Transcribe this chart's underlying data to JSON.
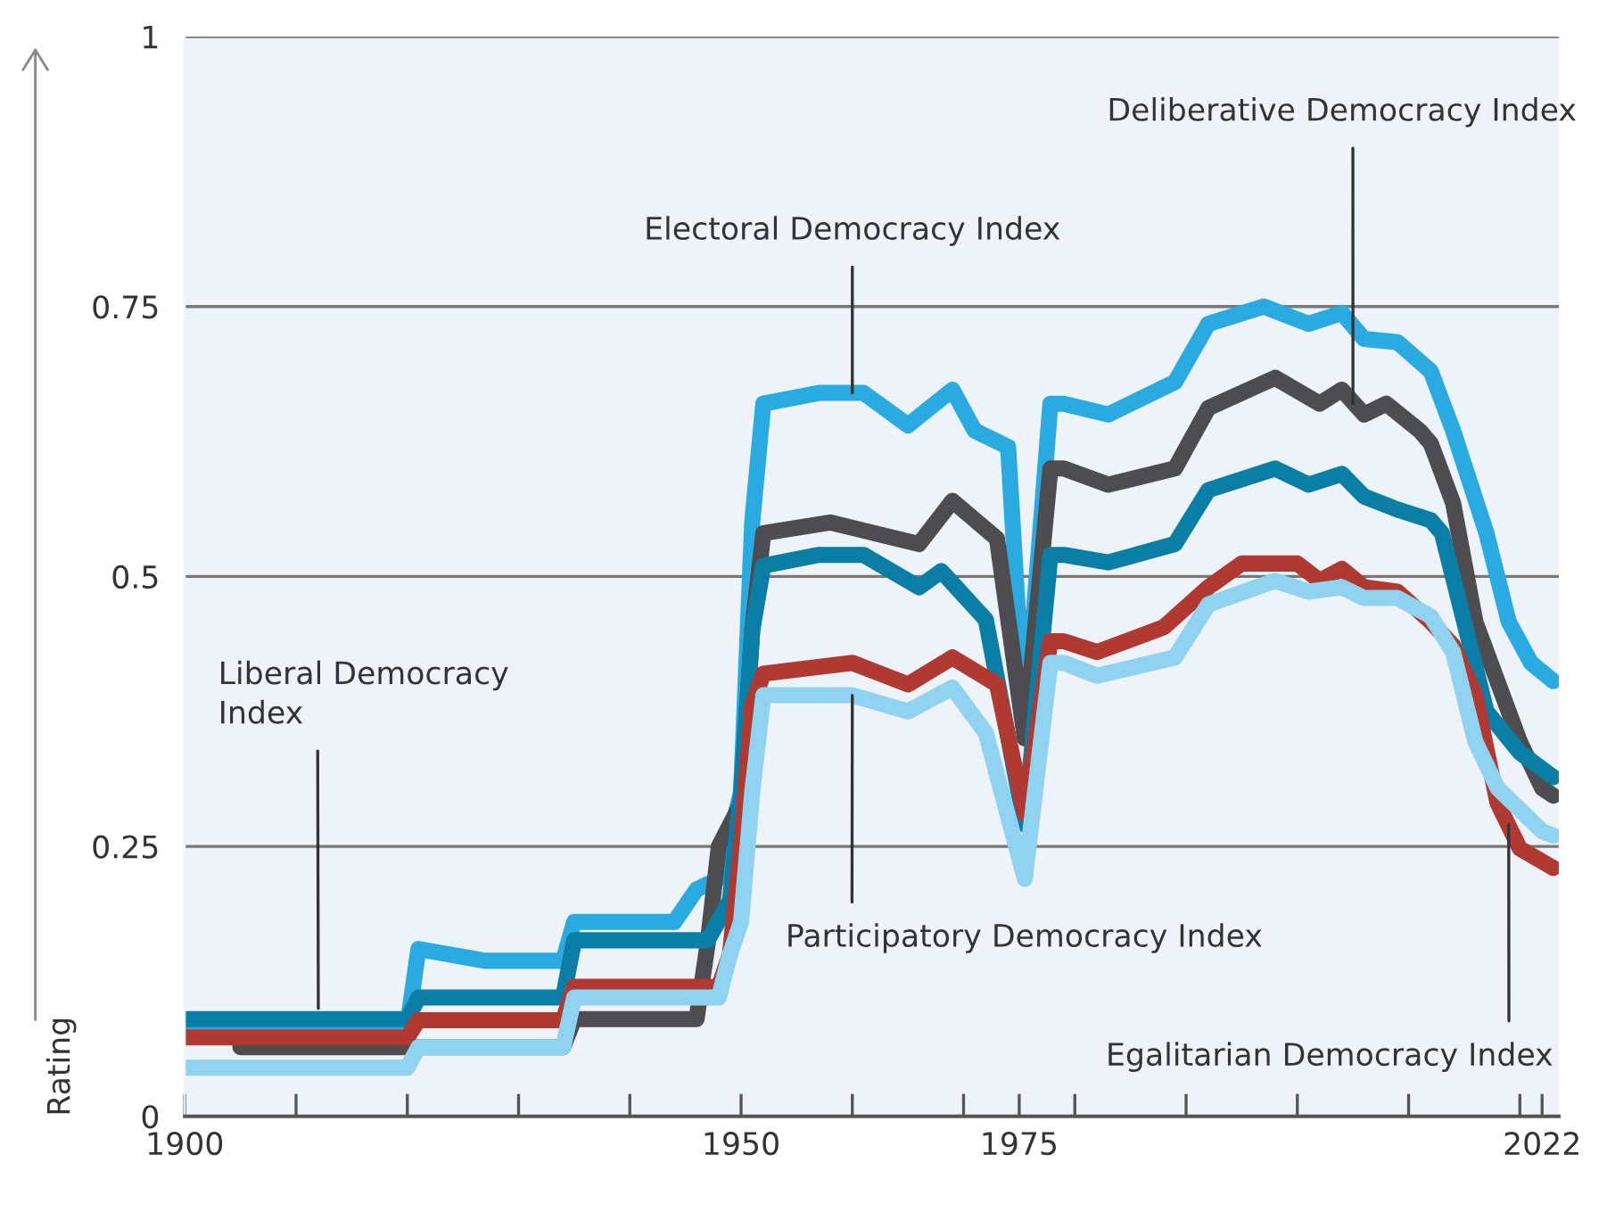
{
  "chart_data": {
    "type": "line",
    "ylabel": "Rating",
    "xlim": [
      1900,
      2023.5
    ],
    "ylim": [
      0,
      1
    ],
    "xticks": [
      1900,
      {
        "value": 1910,
        "label": null
      },
      {
        "value": 1920,
        "label": null
      },
      {
        "value": 1930,
        "label": null
      },
      {
        "value": 1940,
        "label": null
      },
      1950,
      {
        "value": 1960,
        "label": null
      },
      {
        "value": 1970,
        "label": null
      },
      1975,
      {
        "value": 1980,
        "label": null
      },
      {
        "value": 1990,
        "label": null
      },
      {
        "value": 2000,
        "label": null
      },
      {
        "value": 2010,
        "label": null
      },
      {
        "value": 2020,
        "label": null
      },
      2022
    ],
    "yticks": [
      0,
      0.25,
      0.5,
      0.75,
      1
    ],
    "grid": "y",
    "legend": false,
    "line_style": "solid",
    "marker": "none",
    "series": [
      {
        "color": "#29abe2",
        "x": [
          1900,
          1905,
          1906,
          1907,
          1920,
          1921,
          1927,
          1934,
          1935,
          1944,
          1946,
          1948,
          1950,
          1951,
          1952,
          1957,
          1961,
          1965,
          1969,
          1971,
          1974,
          1975.5,
          1977.8,
          1979,
          1983,
          1989,
          1992,
          1997,
          2001,
          2004,
          2006,
          2009,
          2012,
          2014,
          2017,
          2019,
          2021,
          2023
        ],
        "values": [
          0.083,
          0.083,
          0.075,
          0.083,
          0.083,
          0.155,
          0.144,
          0.144,
          0.18,
          0.18,
          0.21,
          0.22,
          0.3,
          0.55,
          0.66,
          0.67,
          0.67,
          0.64,
          0.673,
          0.635,
          0.62,
          0.36,
          0.66,
          0.66,
          0.65,
          0.68,
          0.734,
          0.75,
          0.734,
          0.744,
          0.72,
          0.717,
          0.69,
          0.635,
          0.54,
          0.458,
          0.42,
          0.403
        ]
      },
      {
        "color": "#4d4d4f",
        "x": [
          1905,
          1934,
          1935,
          1946,
          1947,
          1948,
          1950,
          1951,
          1952,
          1958,
          1966,
          1969,
          1973,
          1975.5,
          1977.8,
          1979,
          1983,
          1989,
          1992,
          1998,
          2002,
          2004,
          2006,
          2008,
          2011,
          2012,
          2014,
          2016,
          2020,
          2022,
          2023
        ],
        "values": [
          0.064,
          0.064,
          0.09,
          0.09,
          0.16,
          0.25,
          0.29,
          0.45,
          0.54,
          0.55,
          0.53,
          0.57,
          0.535,
          0.35,
          0.6,
          0.6,
          0.585,
          0.6,
          0.656,
          0.684,
          0.66,
          0.673,
          0.65,
          0.66,
          0.635,
          0.623,
          0.568,
          0.458,
          0.347,
          0.304,
          0.297
        ]
      },
      {
        "color": "#0b7ea5",
        "x": [
          1900,
          1920,
          1921,
          1934,
          1935,
          1947,
          1949,
          1950,
          1951,
          1952,
          1957,
          1961,
          1966,
          1968,
          1972,
          1975.5,
          1977.8,
          1979,
          1983,
          1989,
          1992,
          1998,
          2001,
          2004,
          2006,
          2009,
          2012,
          2013,
          2015,
          2017,
          2020,
          2023
        ],
        "values": [
          0.09,
          0.09,
          0.11,
          0.11,
          0.163,
          0.163,
          0.2,
          0.3,
          0.45,
          0.51,
          0.52,
          0.52,
          0.49,
          0.505,
          0.46,
          0.27,
          0.52,
          0.52,
          0.513,
          0.53,
          0.58,
          0.6,
          0.585,
          0.595,
          0.574,
          0.562,
          0.552,
          0.54,
          0.458,
          0.375,
          0.337,
          0.314
        ]
      },
      {
        "color": "#b03a32",
        "x": [
          1900,
          1920,
          1921,
          1934,
          1935,
          1948,
          1949,
          1950,
          1951,
          1952,
          1960,
          1965,
          1969,
          1973,
          1975.5,
          1977.8,
          1979,
          1982,
          1988,
          1992,
          1995,
          2000,
          2002,
          2004,
          2006,
          2009,
          2012,
          2014,
          2016,
          2018,
          2020,
          2023
        ],
        "values": [
          0.073,
          0.073,
          0.089,
          0.089,
          0.12,
          0.12,
          0.15,
          0.25,
          0.38,
          0.41,
          0.42,
          0.4,
          0.425,
          0.4,
          0.28,
          0.44,
          0.44,
          0.43,
          0.453,
          0.49,
          0.512,
          0.512,
          0.496,
          0.507,
          0.49,
          0.486,
          0.458,
          0.436,
          0.39,
          0.29,
          0.248,
          0.23
        ]
      },
      {
        "color": "#8fd3f0",
        "x": [
          1900,
          1920,
          1921,
          1934,
          1935,
          1948,
          1949,
          1950,
          1951,
          1952,
          1960,
          1965,
          1969,
          1972,
          1975.5,
          1977.8,
          1979,
          1982,
          1989,
          1992,
          1998,
          2001,
          2004,
          2006,
          2009,
          2012,
          2014,
          2016,
          2018,
          2022,
          2023
        ],
        "values": [
          0.045,
          0.045,
          0.064,
          0.064,
          0.11,
          0.11,
          0.15,
          0.18,
          0.3,
          0.39,
          0.39,
          0.375,
          0.397,
          0.355,
          0.22,
          0.42,
          0.42,
          0.408,
          0.425,
          0.474,
          0.496,
          0.486,
          0.49,
          0.48,
          0.48,
          0.463,
          0.43,
          0.347,
          0.304,
          0.264,
          0.26
        ]
      }
    ],
    "annotations": [
      {
        "text": "Electoral Democracy Index",
        "x": 1960,
        "y": 0.67
      },
      {
        "text": "Deliberative Democracy Index",
        "x": 2005,
        "y": 0.66
      },
      {
        "text": "Liberal Democracy\nIndex",
        "x": 1912,
        "y": 0.1
      },
      {
        "text": "Participatory Democracy Index",
        "x": 1960,
        "y": 0.39
      },
      {
        "text": "Egalitarian Democracy Index",
        "x": 2019,
        "y": 0.27
      }
    ]
  }
}
